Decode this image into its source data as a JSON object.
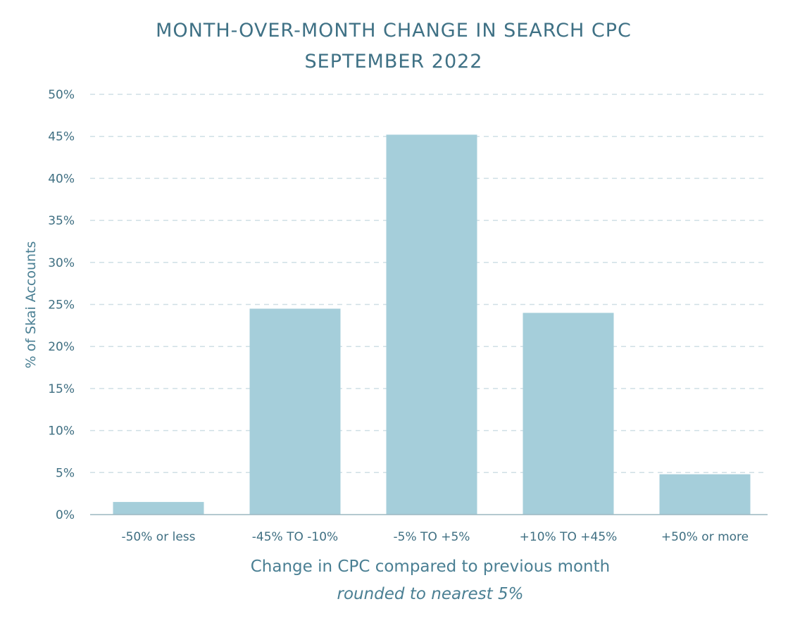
{
  "chart_data": {
    "type": "bar",
    "title": "MONTH-OVER-MONTH CHANGE IN SEARCH CPC",
    "subtitle": "SEPTEMBER 2022",
    "xlabel": "Change in CPC compared to previous month",
    "xlabel_sub": "rounded to nearest 5%",
    "ylabel": "% of Skai Accounts",
    "categories": [
      "-50% or less",
      "-45% TO -10%",
      "-5% TO +5%",
      "+10% TO +45%",
      "+50% or more"
    ],
    "values": [
      1.5,
      24.5,
      45.2,
      24.0,
      4.8
    ],
    "ylim": [
      0,
      50
    ],
    "yticks": [
      0,
      5,
      10,
      15,
      20,
      25,
      30,
      35,
      40,
      45,
      50
    ],
    "ytick_labels": [
      "0%",
      "5%",
      "10%",
      "15%",
      "20%",
      "25%",
      "30%",
      "35%",
      "40%",
      "45%",
      "50%"
    ],
    "grid": true,
    "legend": "none",
    "colors": {
      "bar": "#a5ceda",
      "grid": "#cfdfe5",
      "axis": "#9bb7c1",
      "text": "#3f7185"
    }
  }
}
